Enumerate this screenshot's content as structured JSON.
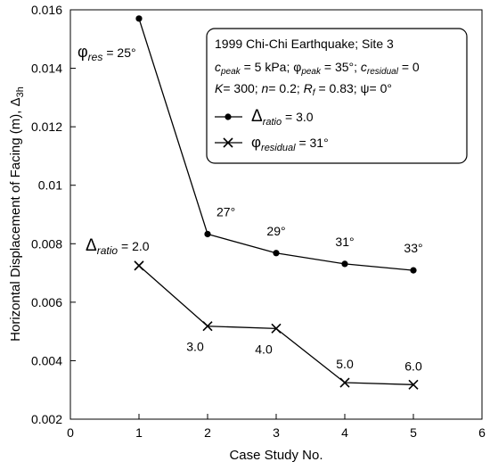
{
  "chart_data": {
    "type": "line",
    "xlabel": "Case Study No.",
    "ylabel": "Horizontal Displacement of Facing (m), Δ",
    "ylabel_sub": "3h",
    "xlim": [
      0,
      6
    ],
    "ylim": [
      0.002,
      0.016
    ],
    "xticks": [
      "0",
      "1",
      "2",
      "3",
      "4",
      "5",
      "6"
    ],
    "yticks": [
      "0.002",
      "0.004",
      "0.006",
      "0.008",
      "0.01",
      "0.012",
      "0.014",
      "0.016"
    ],
    "grid": false,
    "legend_position": "top-right",
    "legend": {
      "lines": [
        "1999 Chi-Chi Earthquake; Site 3",
        "c_peak = 5 kPa; φ_peak = 35°; c_residual = 0",
        "K= 300; n= 0.2; R_f = 0.83; ψ= 0°"
      ]
    },
    "series": [
      {
        "name": "Δ_ratio = 3.0",
        "label_main": "Δ",
        "label_sub": "ratio",
        "label_rest": " = 3.0",
        "marker": "circle",
        "x": [
          1,
          2,
          3,
          4,
          5
        ],
        "values": [
          0.0157,
          0.00833,
          0.00768,
          0.00731,
          0.00709
        ]
      },
      {
        "name": "φ_residual = 31°",
        "label_main": "φ",
        "label_sub": "residual",
        "label_rest": " = 31°",
        "marker": "x",
        "x": [
          1,
          2,
          3,
          4,
          5
        ],
        "values": [
          0.00725,
          0.00518,
          0.0051,
          0.00325,
          0.00318
        ]
      }
    ],
    "annotations": {
      "phi_res_main": "φ",
      "phi_res_sub": "res",
      "phi_res_rest": "=  25°",
      "delta_ratio_main": "Δ",
      "delta_ratio_sub": "ratio",
      "delta_ratio_rest": "=  2.0",
      "series1_point_labels": [
        "27°",
        "29°",
        "31°",
        "33°"
      ],
      "series2_point_labels": [
        "3.0",
        "4.0",
        "5.0",
        "6.0"
      ]
    }
  }
}
